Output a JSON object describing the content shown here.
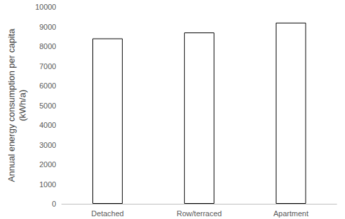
{
  "chart_data": {
    "type": "bar",
    "ylabel": "Annual energy consumption per capita\n(kWh/a)",
    "categories": [
      "Detached",
      "Row/terraced",
      "Apartment"
    ],
    "values": [
      8400,
      8700,
      9200
    ],
    "color": "#ffffff",
    "ylim": [
      0,
      10000
    ],
    "yticks": [
      0,
      1000,
      2000,
      3000,
      4000,
      5000,
      6000,
      7000,
      8000,
      9000,
      10000
    ],
    "grid": false
  }
}
